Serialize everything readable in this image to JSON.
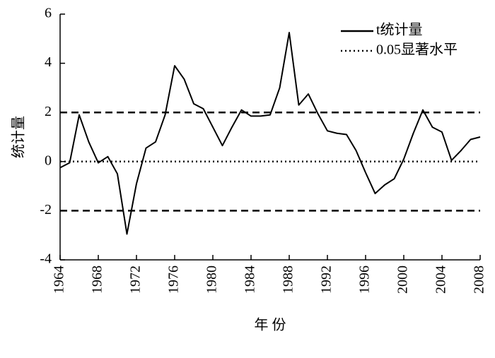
{
  "chart_data": {
    "type": "line",
    "x_label": "年 份",
    "y_label": "统计量",
    "x": [
      1964,
      1965,
      1966,
      1967,
      1968,
      1969,
      1970,
      1971,
      1972,
      1973,
      1974,
      1975,
      1976,
      1977,
      1978,
      1979,
      1980,
      1981,
      1982,
      1983,
      1984,
      1985,
      1986,
      1987,
      1988,
      1989,
      1990,
      1991,
      1992,
      1993,
      1994,
      1995,
      1996,
      1997,
      1998,
      1999,
      2000,
      2001,
      2002,
      2003,
      2004,
      2005,
      2006,
      2007,
      2008
    ],
    "series": [
      {
        "name": "t统计量",
        "color": "#000000",
        "values": [
          -0.25,
          -0.05,
          1.9,
          0.8,
          -0.05,
          0.2,
          -0.5,
          -2.95,
          -0.9,
          0.55,
          0.8,
          1.9,
          3.9,
          3.35,
          2.35,
          2.15,
          1.4,
          0.65,
          1.4,
          2.1,
          1.85,
          1.85,
          1.9,
          3.0,
          5.25,
          2.3,
          2.75,
          1.95,
          1.25,
          1.15,
          1.1,
          0.45,
          -0.45,
          -1.3,
          -0.95,
          -0.7,
          0.1,
          1.15,
          2.1,
          1.4,
          1.2,
          0.05,
          0.45,
          0.9,
          1.0
        ]
      }
    ],
    "reference": {
      "name": "0.05显著水平",
      "style": "dotted"
    },
    "hlines": [
      {
        "value": 2,
        "style": "dashed"
      },
      {
        "value": 0,
        "style": "dotted"
      },
      {
        "value": -2,
        "style": "dashed"
      }
    ],
    "xlim": [
      1964,
      2008
    ],
    "xticks": [
      1964,
      1968,
      1972,
      1976,
      1980,
      1984,
      1988,
      1992,
      1996,
      2000,
      2004,
      2008
    ],
    "ylim": [
      -4,
      6
    ],
    "yticks": [
      -4,
      -2,
      0,
      2,
      4,
      6
    ]
  }
}
